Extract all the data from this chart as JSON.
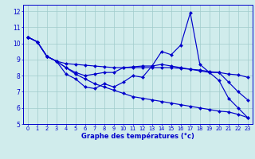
{
  "background_color": "#d0ecec",
  "line_color": "#0000cc",
  "grid_color": "#a0cccc",
  "xlabel": "Graphe des températures (°c)",
  "x": [
    0,
    1,
    2,
    3,
    4,
    5,
    6,
    7,
    8,
    9,
    10,
    11,
    12,
    13,
    14,
    15,
    16,
    17,
    18,
    19,
    20,
    21,
    22,
    23
  ],
  "ylim": [
    5,
    12.4
  ],
  "xlim": [
    -0.5,
    23.5
  ],
  "yticks": [
    5,
    6,
    7,
    8,
    9,
    10,
    11,
    12
  ],
  "line1": [
    10.4,
    10.1,
    9.2,
    8.9,
    8.1,
    7.8,
    7.3,
    7.2,
    7.5,
    7.3,
    7.6,
    8.0,
    7.9,
    8.6,
    9.5,
    9.3,
    9.9,
    11.9,
    8.7,
    8.2,
    7.7,
    6.6,
    6.0,
    5.4
  ],
  "line2": [
    10.4,
    10.1,
    9.2,
    8.9,
    8.5,
    8.2,
    8.0,
    8.1,
    8.2,
    8.2,
    8.5,
    8.55,
    8.6,
    8.6,
    8.7,
    8.6,
    8.5,
    8.4,
    8.3,
    8.2,
    8.2,
    8.1,
    8.05,
    7.9
  ],
  "line3": [
    10.4,
    10.1,
    9.2,
    8.9,
    8.75,
    8.7,
    8.65,
    8.6,
    8.55,
    8.5,
    8.5,
    8.5,
    8.5,
    8.5,
    8.5,
    8.5,
    8.45,
    8.4,
    8.35,
    8.25,
    8.2,
    7.6,
    7.0,
    6.5
  ],
  "line4": [
    10.4,
    10.1,
    9.2,
    8.9,
    8.5,
    8.1,
    7.8,
    7.5,
    7.3,
    7.1,
    6.9,
    6.7,
    6.6,
    6.5,
    6.4,
    6.3,
    6.2,
    6.1,
    6.0,
    5.9,
    5.8,
    5.75,
    5.6,
    5.4
  ]
}
